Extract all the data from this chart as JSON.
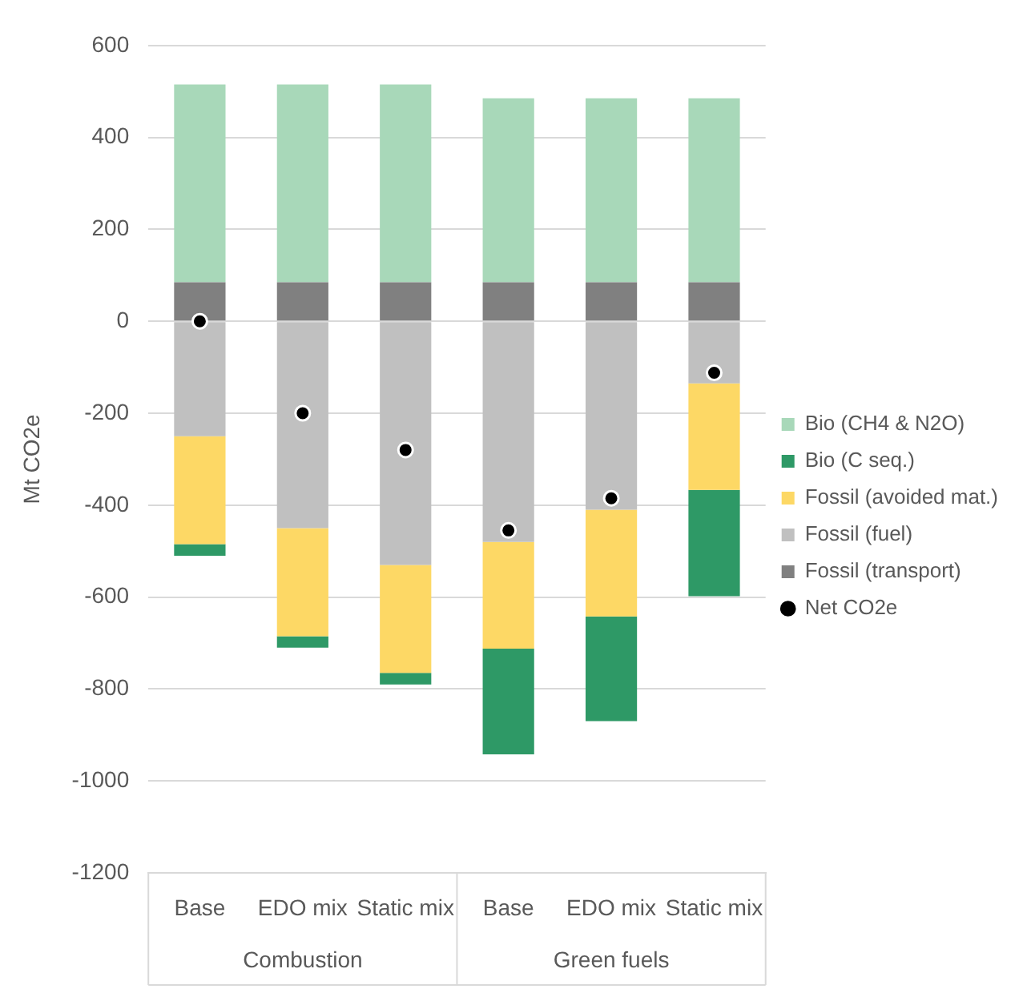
{
  "chart_data": {
    "type": "bar",
    "stacked": true,
    "ylabel": "Mt CO2e",
    "categories": [
      "Base",
      "EDO mix",
      "Static mix",
      "Base",
      "EDO mix",
      "Static mix"
    ],
    "series": [
      {
        "name": "Fossil (transport)",
        "color": "#808080",
        "values": [
          85,
          85,
          85,
          85,
          85,
          85
        ]
      },
      {
        "name": "Fossil (fuel)",
        "color": "#c0c0c0",
        "values": [
          -250,
          -450,
          -530,
          -480,
          -410,
          -135
        ]
      },
      {
        "name": "Fossil (avoided mat.)",
        "color": "#fdd865",
        "values": [
          -235,
          -235,
          -235,
          -232,
          -232,
          -232
        ]
      },
      {
        "name": "Bio (C seq.)",
        "color": "#2e9966",
        "values": [
          -25,
          -25,
          -25,
          -230,
          -228,
          -231
        ]
      },
      {
        "name": "Bio (CH4 & N2O)",
        "color": "#a8d8b9",
        "values": [
          430,
          430,
          430,
          400,
          400,
          400
        ]
      },
      {
        "name": "Net CO2e",
        "type": "scatter",
        "marker": "circle",
        "color": "#000000",
        "values": [
          0,
          -200,
          -280,
          -455,
          -385,
          -112
        ]
      }
    ],
    "ylim": [
      -1200,
      600
    ],
    "yticks": [
      -1200,
      -1000,
      -800,
      -600,
      -400,
      -200,
      0,
      200,
      400,
      600
    ],
    "grid": "y",
    "legend": "right",
    "annotations": [
      "Combustion",
      "Green fuels"
    ]
  }
}
